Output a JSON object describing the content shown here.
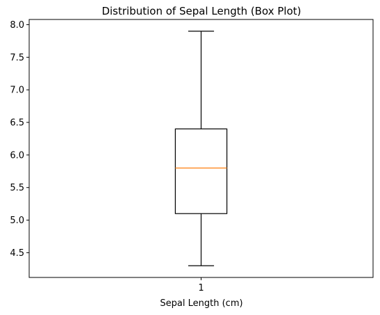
{
  "chart_data": {
    "type": "box",
    "title": "Distribution of Sepal Length (Box Plot)",
    "xlabel": "Sepal Length (cm)",
    "ylabel": "",
    "categories": [
      "1"
    ],
    "boxes": [
      {
        "category": "1",
        "whisker_low": 4.3,
        "q1": 5.1,
        "median": 5.8,
        "q3": 6.4,
        "whisker_high": 7.9
      }
    ],
    "ylim": [
      4.12,
      8.08
    ],
    "xlim": [
      0.5,
      1.5
    ],
    "yticks": [
      4.5,
      5.0,
      5.5,
      6.0,
      6.5,
      7.0,
      7.5,
      8.0
    ],
    "ytick_labels": [
      "4.5",
      "5.0",
      "5.5",
      "6.0",
      "6.5",
      "7.0",
      "7.5",
      "8.0"
    ],
    "grid": false,
    "colors": {
      "box": "#000000",
      "median": "#ff7f0e",
      "whisker": "#000000"
    }
  }
}
